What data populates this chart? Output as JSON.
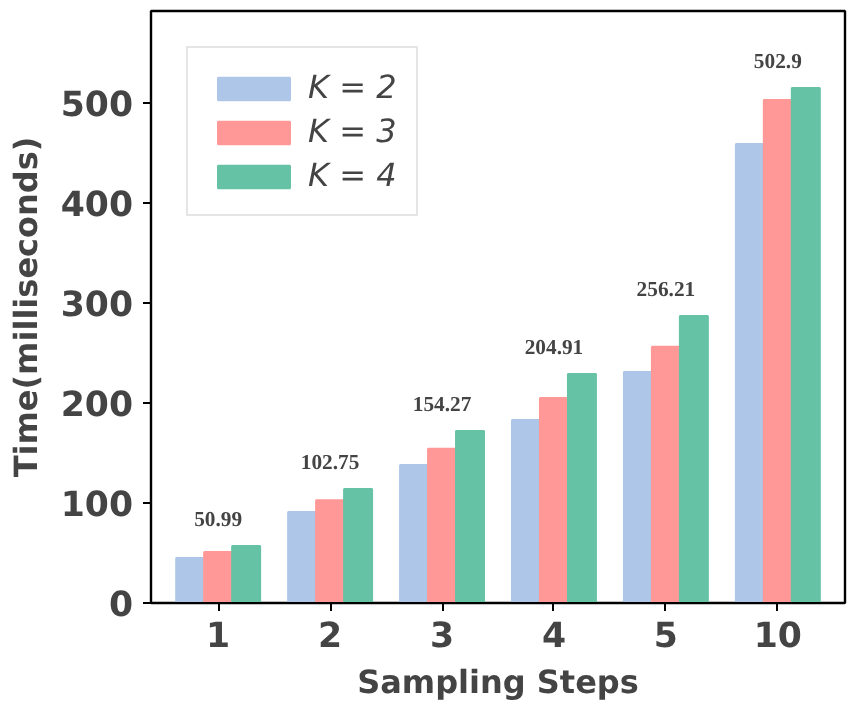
{
  "chart_data": {
    "type": "bar",
    "xlabel": "Sampling Steps",
    "ylabel": "Time(milliseconds)",
    "categories": [
      "1",
      "2",
      "3",
      "4",
      "5",
      "10"
    ],
    "series": [
      {
        "name": "K = 2",
        "color": "#aec7e8",
        "values": [
          45,
          91,
          138,
          183,
          231,
          459
        ]
      },
      {
        "name": "K = 3",
        "color": "#ff9896",
        "values": [
          50.99,
          102.75,
          154.27,
          204.91,
          256.21,
          502.9
        ],
        "value_labels": [
          "50.99",
          "102.75",
          "154.27",
          "204.91",
          "256.21",
          "502.9"
        ]
      },
      {
        "name": "K = 4",
        "color": "#66c2a5",
        "values": [
          57,
          114,
          172,
          229,
          287,
          515
        ]
      }
    ],
    "ylim": [
      0,
      592
    ],
    "yticks": [
      0,
      100,
      200,
      300,
      400,
      500
    ],
    "grid": false,
    "legend": "top left"
  }
}
